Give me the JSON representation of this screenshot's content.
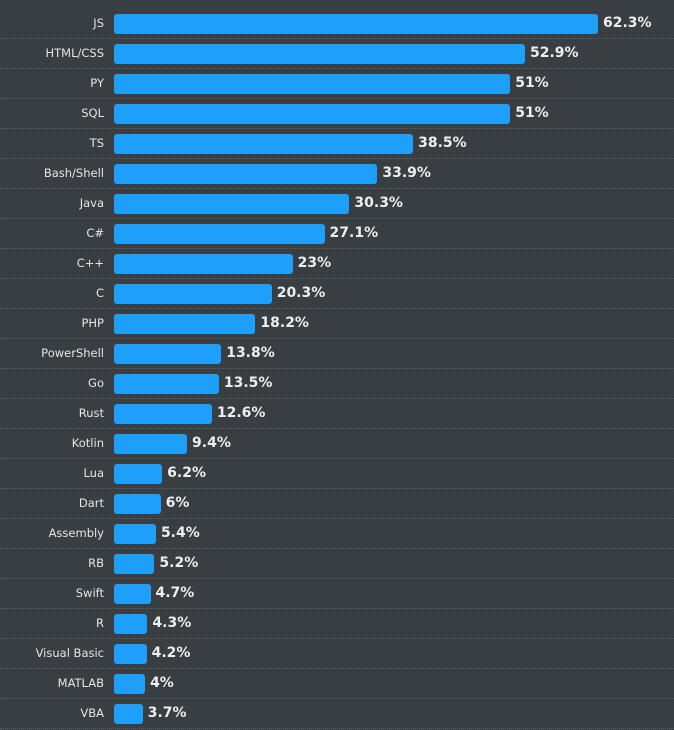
{
  "chart_data": {
    "type": "bar",
    "orientation": "horizontal",
    "title": "",
    "xlabel": "",
    "ylabel": "",
    "xlim": [
      0,
      62.3
    ],
    "value_suffix": "%",
    "bar_color": "#1e9ffa",
    "background": "#393e42",
    "grid": "dotted row separators",
    "categories": [
      "JS",
      "HTML/CSS",
      "PY",
      "SQL",
      "TS",
      "Bash/Shell",
      "Java",
      "C#",
      "C++",
      "C",
      "PHP",
      "PowerShell",
      "Go",
      "Rust",
      "Kotlin",
      "Lua",
      "Dart",
      "Assembly",
      "RB",
      "Swift",
      "R",
      "Visual Basic",
      "MATLAB",
      "VBA"
    ],
    "values": [
      62.3,
      52.9,
      51,
      51,
      38.5,
      33.9,
      30.3,
      27.1,
      23,
      20.3,
      18.2,
      13.8,
      13.5,
      12.6,
      9.4,
      6.2,
      6,
      5.4,
      5.2,
      4.7,
      4.3,
      4.2,
      4,
      3.7
    ],
    "value_labels": [
      "62.3%",
      "52.9%",
      "51%",
      "51%",
      "38.5%",
      "33.9%",
      "30.3%",
      "27.1%",
      "23%",
      "20.3%",
      "18.2%",
      "13.8%",
      "13.5%",
      "12.6%",
      "9.4%",
      "6.2%",
      "6%",
      "5.4%",
      "5.2%",
      "4.7%",
      "4.3%",
      "4.2%",
      "4%",
      "3.7%"
    ]
  }
}
